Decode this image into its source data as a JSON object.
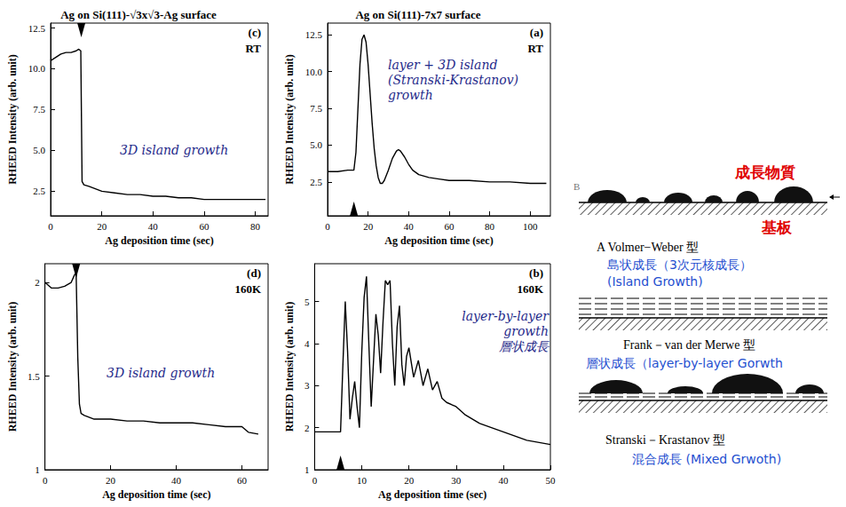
{
  "chart_data": [
    {
      "type": "line",
      "title": "Ag on Si(111)-√3x√3-Ag surface",
      "panel": "(c)",
      "temperature": "RT",
      "annotation": [
        "3D island growth"
      ],
      "x_label": "Ag deposition time (sec)",
      "y_label": "RHEED Intensity (arb. unit)",
      "x": [
        0,
        2,
        4,
        6,
        8,
        10,
        11,
        11.8,
        12.3,
        13,
        15,
        20,
        25,
        30,
        35,
        40,
        45,
        50,
        55,
        60,
        65,
        70,
        75,
        80,
        84
      ],
      "values": [
        10.5,
        10.7,
        10.9,
        11.0,
        11.0,
        11.1,
        11.2,
        11.1,
        3.1,
        2.9,
        2.8,
        2.5,
        2.4,
        2.3,
        2.3,
        2.2,
        2.2,
        2.1,
        2.1,
        2.0,
        2.0,
        2.0,
        2.0,
        2.0,
        2.0
      ],
      "color": "#000000",
      "arrow_x": 12,
      "xlim": [
        0,
        85
      ],
      "xticks": [
        0,
        20,
        40,
        60,
        80
      ],
      "ylim": [
        1.0,
        12.8
      ],
      "yticks": [
        2.5,
        {
          "value": 5,
          "label": "5.0"
        },
        7.5,
        {
          "value": 10,
          "label": "10.0"
        },
        12.5
      ],
      "grid": false
    },
    {
      "type": "line",
      "title": "Ag on Si(111)-7x7 surface",
      "panel": "(a)",
      "temperature": "RT",
      "annotation": [
        "layer + 3D island",
        "(Stranski-Krastanov)",
        "growth"
      ],
      "x_label": "Ag deposition time (sec)",
      "y_label": "RHEED Intensity (arb. unit)",
      "x": [
        0,
        5,
        10,
        13,
        14,
        15,
        16,
        17,
        18,
        19,
        20,
        21,
        22,
        23,
        24,
        25,
        26,
        27,
        28,
        30,
        32,
        34,
        35,
        36,
        38,
        40,
        42,
        45,
        50,
        55,
        60,
        70,
        80,
        90,
        100,
        108
      ],
      "values": [
        3.2,
        3.2,
        3.3,
        3.3,
        4.5,
        7.5,
        10.5,
        12.2,
        12.5,
        12.0,
        10.5,
        8.5,
        6.5,
        4.8,
        3.6,
        2.8,
        2.4,
        2.4,
        2.6,
        3.3,
        4.1,
        4.6,
        4.7,
        4.6,
        4.2,
        3.7,
        3.3,
        3.0,
        2.8,
        2.7,
        2.6,
        2.6,
        2.5,
        2.5,
        2.4,
        2.4
      ],
      "color": "#000000",
      "arrow_x": 13,
      "xlim": [
        0,
        110
      ],
      "xticks": [
        0,
        20,
        40,
        60,
        80,
        100
      ],
      "ylim": [
        0.2,
        13.3
      ],
      "yticks": [
        2.5,
        {
          "value": 5,
          "label": "5.0"
        },
        7.5,
        {
          "value": 10,
          "label": "10.0"
        },
        12.5
      ],
      "grid": false
    },
    {
      "type": "line",
      "panel": "(d)",
      "temperature": "160K",
      "annotation": [
        "3D island growth"
      ],
      "x_label": "Ag deposition time (sec)",
      "y_label": "RHEED Intensity (arb. unit)",
      "x": [
        0,
        2,
        4,
        6,
        8,
        9,
        9.5,
        10,
        10.5,
        11,
        12,
        15,
        20,
        25,
        30,
        35,
        40,
        45,
        50,
        55,
        60,
        62,
        65
      ],
      "values": [
        2.0,
        1.97,
        1.97,
        1.98,
        2.0,
        2.04,
        2.05,
        1.6,
        1.35,
        1.3,
        1.29,
        1.27,
        1.27,
        1.26,
        1.26,
        1.25,
        1.25,
        1.25,
        1.24,
        1.23,
        1.23,
        1.2,
        1.19
      ],
      "color": "#000000",
      "arrow_x": 9.5,
      "xlim": [
        0,
        68
      ],
      "xticks": [
        0,
        20,
        40,
        60
      ],
      "ylim": [
        1,
        2.1
      ],
      "yticks": [
        1,
        1.5,
        2
      ],
      "grid": false
    },
    {
      "type": "line",
      "panel": "(b)",
      "temperature": "160K",
      "annotation": [
        "layer-by-layer",
        "growth",
        "層状成長"
      ],
      "x_label": "Ag deposition time (sec)",
      "y_label": "RHEED Intensity (arb. unit)",
      "x": [
        0,
        3,
        5.5,
        6,
        6.5,
        7,
        7.5,
        8,
        8.5,
        9,
        9.5,
        10,
        10.5,
        11,
        11.5,
        12,
        12.5,
        13,
        13.5,
        14,
        14.5,
        15,
        15.5,
        16,
        16.5,
        17,
        17.5,
        18,
        18.5,
        19,
        19.5,
        20,
        21,
        22,
        23,
        24,
        25,
        26,
        27,
        28,
        30,
        32,
        35,
        40,
        45,
        50
      ],
      "values": [
        1.9,
        1.9,
        1.9,
        3.5,
        5.0,
        3.8,
        2.2,
        2.7,
        3.1,
        2.5,
        2.0,
        3.8,
        5.1,
        5.6,
        4.0,
        2.5,
        3.6,
        4.7,
        4.2,
        3.3,
        4.5,
        5.5,
        5.4,
        5.5,
        4.0,
        3.0,
        4.4,
        4.9,
        3.5,
        3.0,
        3.7,
        3.9,
        3.2,
        3.6,
        3.0,
        3.4,
        2.9,
        3.1,
        2.7,
        2.6,
        2.5,
        2.3,
        2.1,
        1.9,
        1.7,
        1.6
      ],
      "color": "#000000",
      "arrow_x": 5.5,
      "xlim": [
        0,
        50
      ],
      "xticks": [
        0,
        10,
        20,
        30,
        40,
        50
      ],
      "ylim": [
        1,
        5.9
      ],
      "yticks": [
        1,
        2,
        3,
        4,
        5
      ],
      "grid": false
    }
  ],
  "diagram": {
    "mark": "B",
    "material_label": "成長物質",
    "substrate_label": "基板",
    "modes": [
      {
        "name": "A  Volmer−Weber 型",
        "texts": [
          "島状成長（3次元核成長）",
          "(Island Growth)"
        ]
      },
      {
        "name": "Frank－van der Merwe 型",
        "texts": [
          "層状成長（layer-by-layer Gorwth"
        ]
      },
      {
        "name": "Stranski－Krastanov 型",
        "texts": [
          "混合成長 (Mixed Grwoth)"
        ]
      }
    ]
  }
}
